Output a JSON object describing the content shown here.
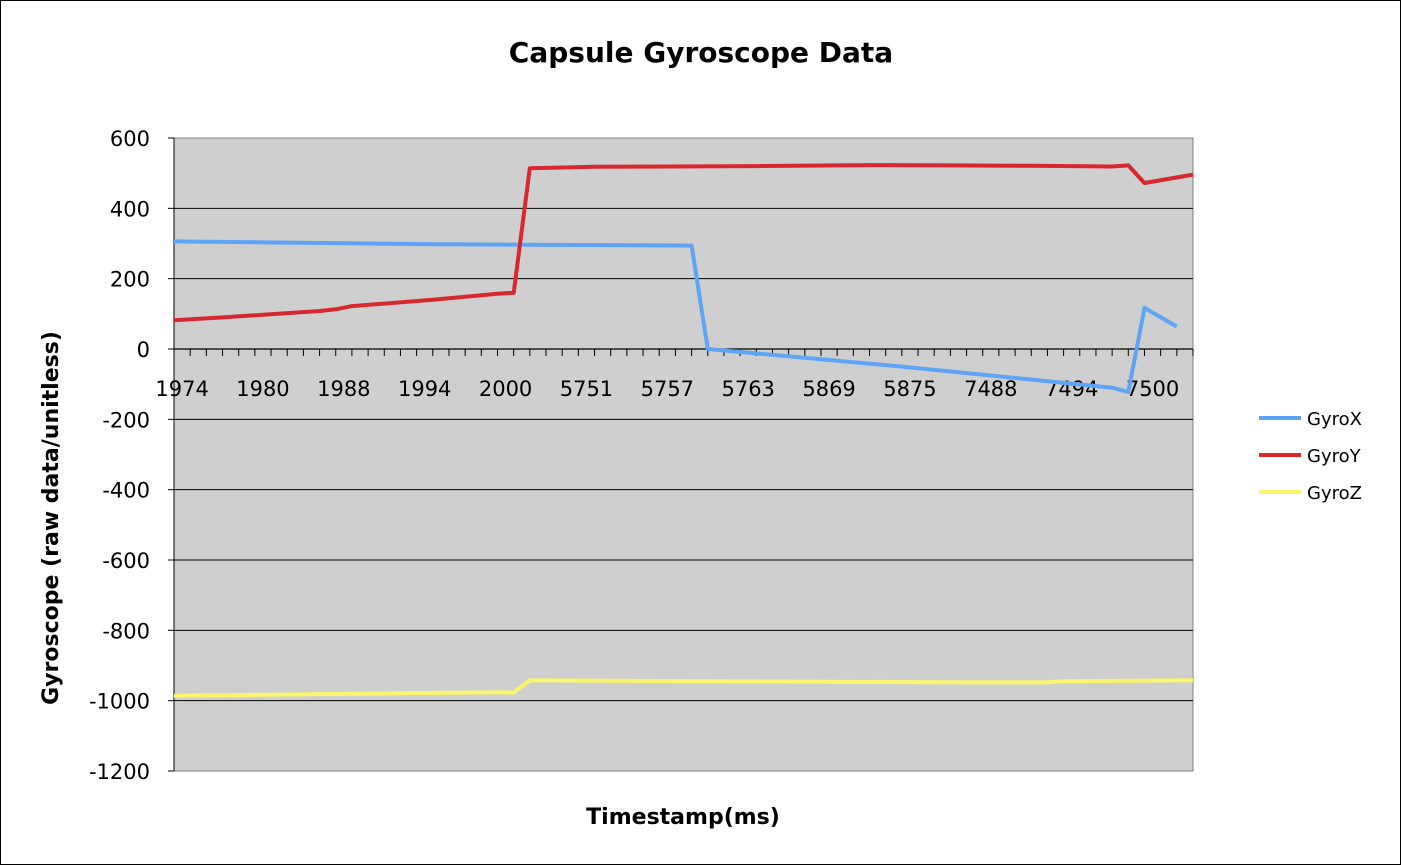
{
  "chart_data": {
    "type": "line",
    "title": "Capsule Gyroscope Data",
    "xlabel": "Timestamp(ms)",
    "ylabel": "Gyroscope (raw data/unitless)",
    "ylim": [
      -1200,
      600
    ],
    "yticks": [
      600,
      400,
      200,
      0,
      -200,
      -400,
      -600,
      -800,
      -1000,
      -1200
    ],
    "grid": true,
    "legend_position": "right",
    "x_category_labels": [
      "1974",
      "1980",
      "1988",
      "1994",
      "2000",
      "5751",
      "5757",
      "5763",
      "5869",
      "5875",
      "7488",
      "7494",
      "7500"
    ],
    "n_points": 63,
    "series": [
      {
        "name": "GyroX",
        "color": "#5fa4f7",
        "points": [
          [
            0,
            306
          ],
          [
            16,
            298
          ],
          [
            32,
            294
          ],
          [
            33,
            0
          ],
          [
            45,
            -50
          ],
          [
            58,
            -110
          ],
          [
            59,
            -122
          ],
          [
            60,
            117
          ],
          [
            62,
            64
          ]
        ]
      },
      {
        "name": "GyroY",
        "color": "#d9272e",
        "points": [
          [
            0,
            82
          ],
          [
            3,
            90
          ],
          [
            9,
            108
          ],
          [
            10,
            113
          ],
          [
            11,
            122
          ],
          [
            16,
            140
          ],
          [
            20,
            157
          ],
          [
            21,
            160
          ],
          [
            22,
            514
          ],
          [
            26,
            518
          ],
          [
            36,
            520
          ],
          [
            43,
            523
          ],
          [
            48,
            522
          ],
          [
            53,
            521
          ],
          [
            58,
            519
          ],
          [
            59,
            522
          ],
          [
            60,
            472
          ],
          [
            63,
            496
          ]
        ]
      },
      {
        "name": "GyroZ",
        "color": "#faf56d",
        "points": [
          [
            0,
            -986
          ],
          [
            20,
            -976
          ],
          [
            21,
            -977
          ],
          [
            22,
            -942
          ],
          [
            34,
            -945
          ],
          [
            49,
            -948
          ],
          [
            54,
            -948
          ],
          [
            55,
            -945
          ],
          [
            63,
            -942
          ]
        ]
      }
    ]
  }
}
